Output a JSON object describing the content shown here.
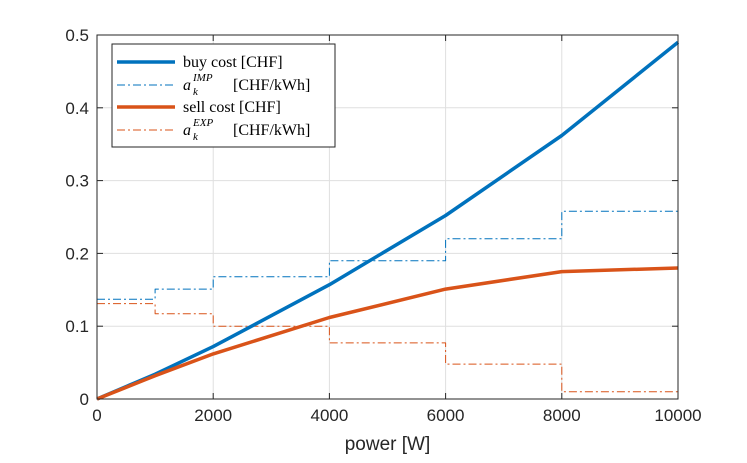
{
  "chart_data": {
    "type": "line",
    "xlabel": "power [W]",
    "ylabel": "",
    "xlim": [
      0,
      10000
    ],
    "ylim": [
      0,
      0.5
    ],
    "xticks": [
      0,
      2000,
      4000,
      6000,
      8000,
      10000
    ],
    "yticks": [
      0,
      0.1,
      0.2,
      0.3,
      0.4,
      0.5
    ],
    "xtick_labels": [
      "0",
      "2000",
      "4000",
      "6000",
      "8000",
      "10000"
    ],
    "ytick_labels": [
      "0",
      "0.1",
      "0.2",
      "0.3",
      "0.4",
      "0.5"
    ],
    "grid": true,
    "legend_position": "top-left",
    "series": [
      {
        "name": "buy cost [CHF]",
        "color": "#0072BD",
        "style": "solid",
        "x": [
          0,
          1000,
          2000,
          4000,
          6000,
          8000,
          10000
        ],
        "y": [
          0,
          0.034,
          0.072,
          0.157,
          0.252,
          0.362,
          0.49
        ]
      },
      {
        "name": "a_k^IMP [CHF/kWh]",
        "legend_base": "a",
        "legend_sub": "k",
        "legend_sup": "IMP",
        "legend_unit": "[CHF/kWh]",
        "color": "#0072BD",
        "style": "dashdot",
        "step": true,
        "x": [
          0,
          1000,
          2000,
          4000,
          6000,
          8000,
          10000
        ],
        "y": [
          0.137,
          0.151,
          0.168,
          0.19,
          0.22,
          0.258,
          0.258
        ]
      },
      {
        "name": "sell cost [CHF]",
        "color": "#D95319",
        "style": "solid",
        "x": [
          0,
          1000,
          2000,
          4000,
          6000,
          8000,
          10000
        ],
        "y": [
          0,
          0.032,
          0.062,
          0.112,
          0.151,
          0.175,
          0.18
        ]
      },
      {
        "name": "a_k^EXP [CHF/kWh]",
        "legend_base": "a",
        "legend_sub": "k",
        "legend_sup": "EXP",
        "legend_unit": "[CHF/kWh]",
        "color": "#D95319",
        "style": "dashdot",
        "step": true,
        "x": [
          0,
          1000,
          2000,
          4000,
          6000,
          8000,
          10000
        ],
        "y": [
          0.131,
          0.117,
          0.1,
          0.077,
          0.048,
          0.01,
          0.01
        ]
      }
    ]
  }
}
